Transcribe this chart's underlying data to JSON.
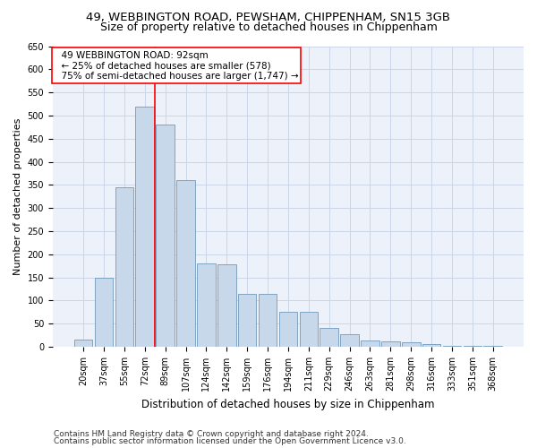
{
  "title_line1": "49, WEBBINGTON ROAD, PEWSHAM, CHIPPENHAM, SN15 3GB",
  "title_line2": "Size of property relative to detached houses in Chippenham",
  "xlabel": "Distribution of detached houses by size in Chippenham",
  "ylabel": "Number of detached properties",
  "categories": [
    "20sqm",
    "37sqm",
    "55sqm",
    "72sqm",
    "89sqm",
    "107sqm",
    "124sqm",
    "142sqm",
    "159sqm",
    "176sqm",
    "194sqm",
    "211sqm",
    "229sqm",
    "246sqm",
    "263sqm",
    "281sqm",
    "298sqm",
    "316sqm",
    "333sqm",
    "351sqm",
    "368sqm"
  ],
  "values": [
    15,
    150,
    345,
    520,
    480,
    360,
    180,
    178,
    115,
    115,
    75,
    75,
    40,
    28,
    13,
    12,
    10,
    5,
    2,
    2,
    2
  ],
  "bar_color": "#c8d8eb",
  "bar_edge_color": "#7099bb",
  "annotation_text": "  49 WEBBINGTON ROAD: 92sqm\n  ← 25% of detached houses are smaller (578)\n  75% of semi-detached houses are larger (1,747) →",
  "annotation_box_color": "white",
  "annotation_box_edge_color": "red",
  "vline_x_index": 4,
  "vline_color": "red",
  "grid_color": "#ccd5e8",
  "background_color": "#edf1fa",
  "ylim": [
    0,
    650
  ],
  "yticks": [
    0,
    50,
    100,
    150,
    200,
    250,
    300,
    350,
    400,
    450,
    500,
    550,
    600,
    650
  ],
  "footer_line1": "Contains HM Land Registry data © Crown copyright and database right 2024.",
  "footer_line2": "Contains public sector information licensed under the Open Government Licence v3.0.",
  "title_fontsize": 9.5,
  "subtitle_fontsize": 9,
  "tick_fontsize": 7,
  "ylabel_fontsize": 8,
  "xlabel_fontsize": 8.5,
  "annotation_fontsize": 7.5,
  "footer_fontsize": 6.5
}
